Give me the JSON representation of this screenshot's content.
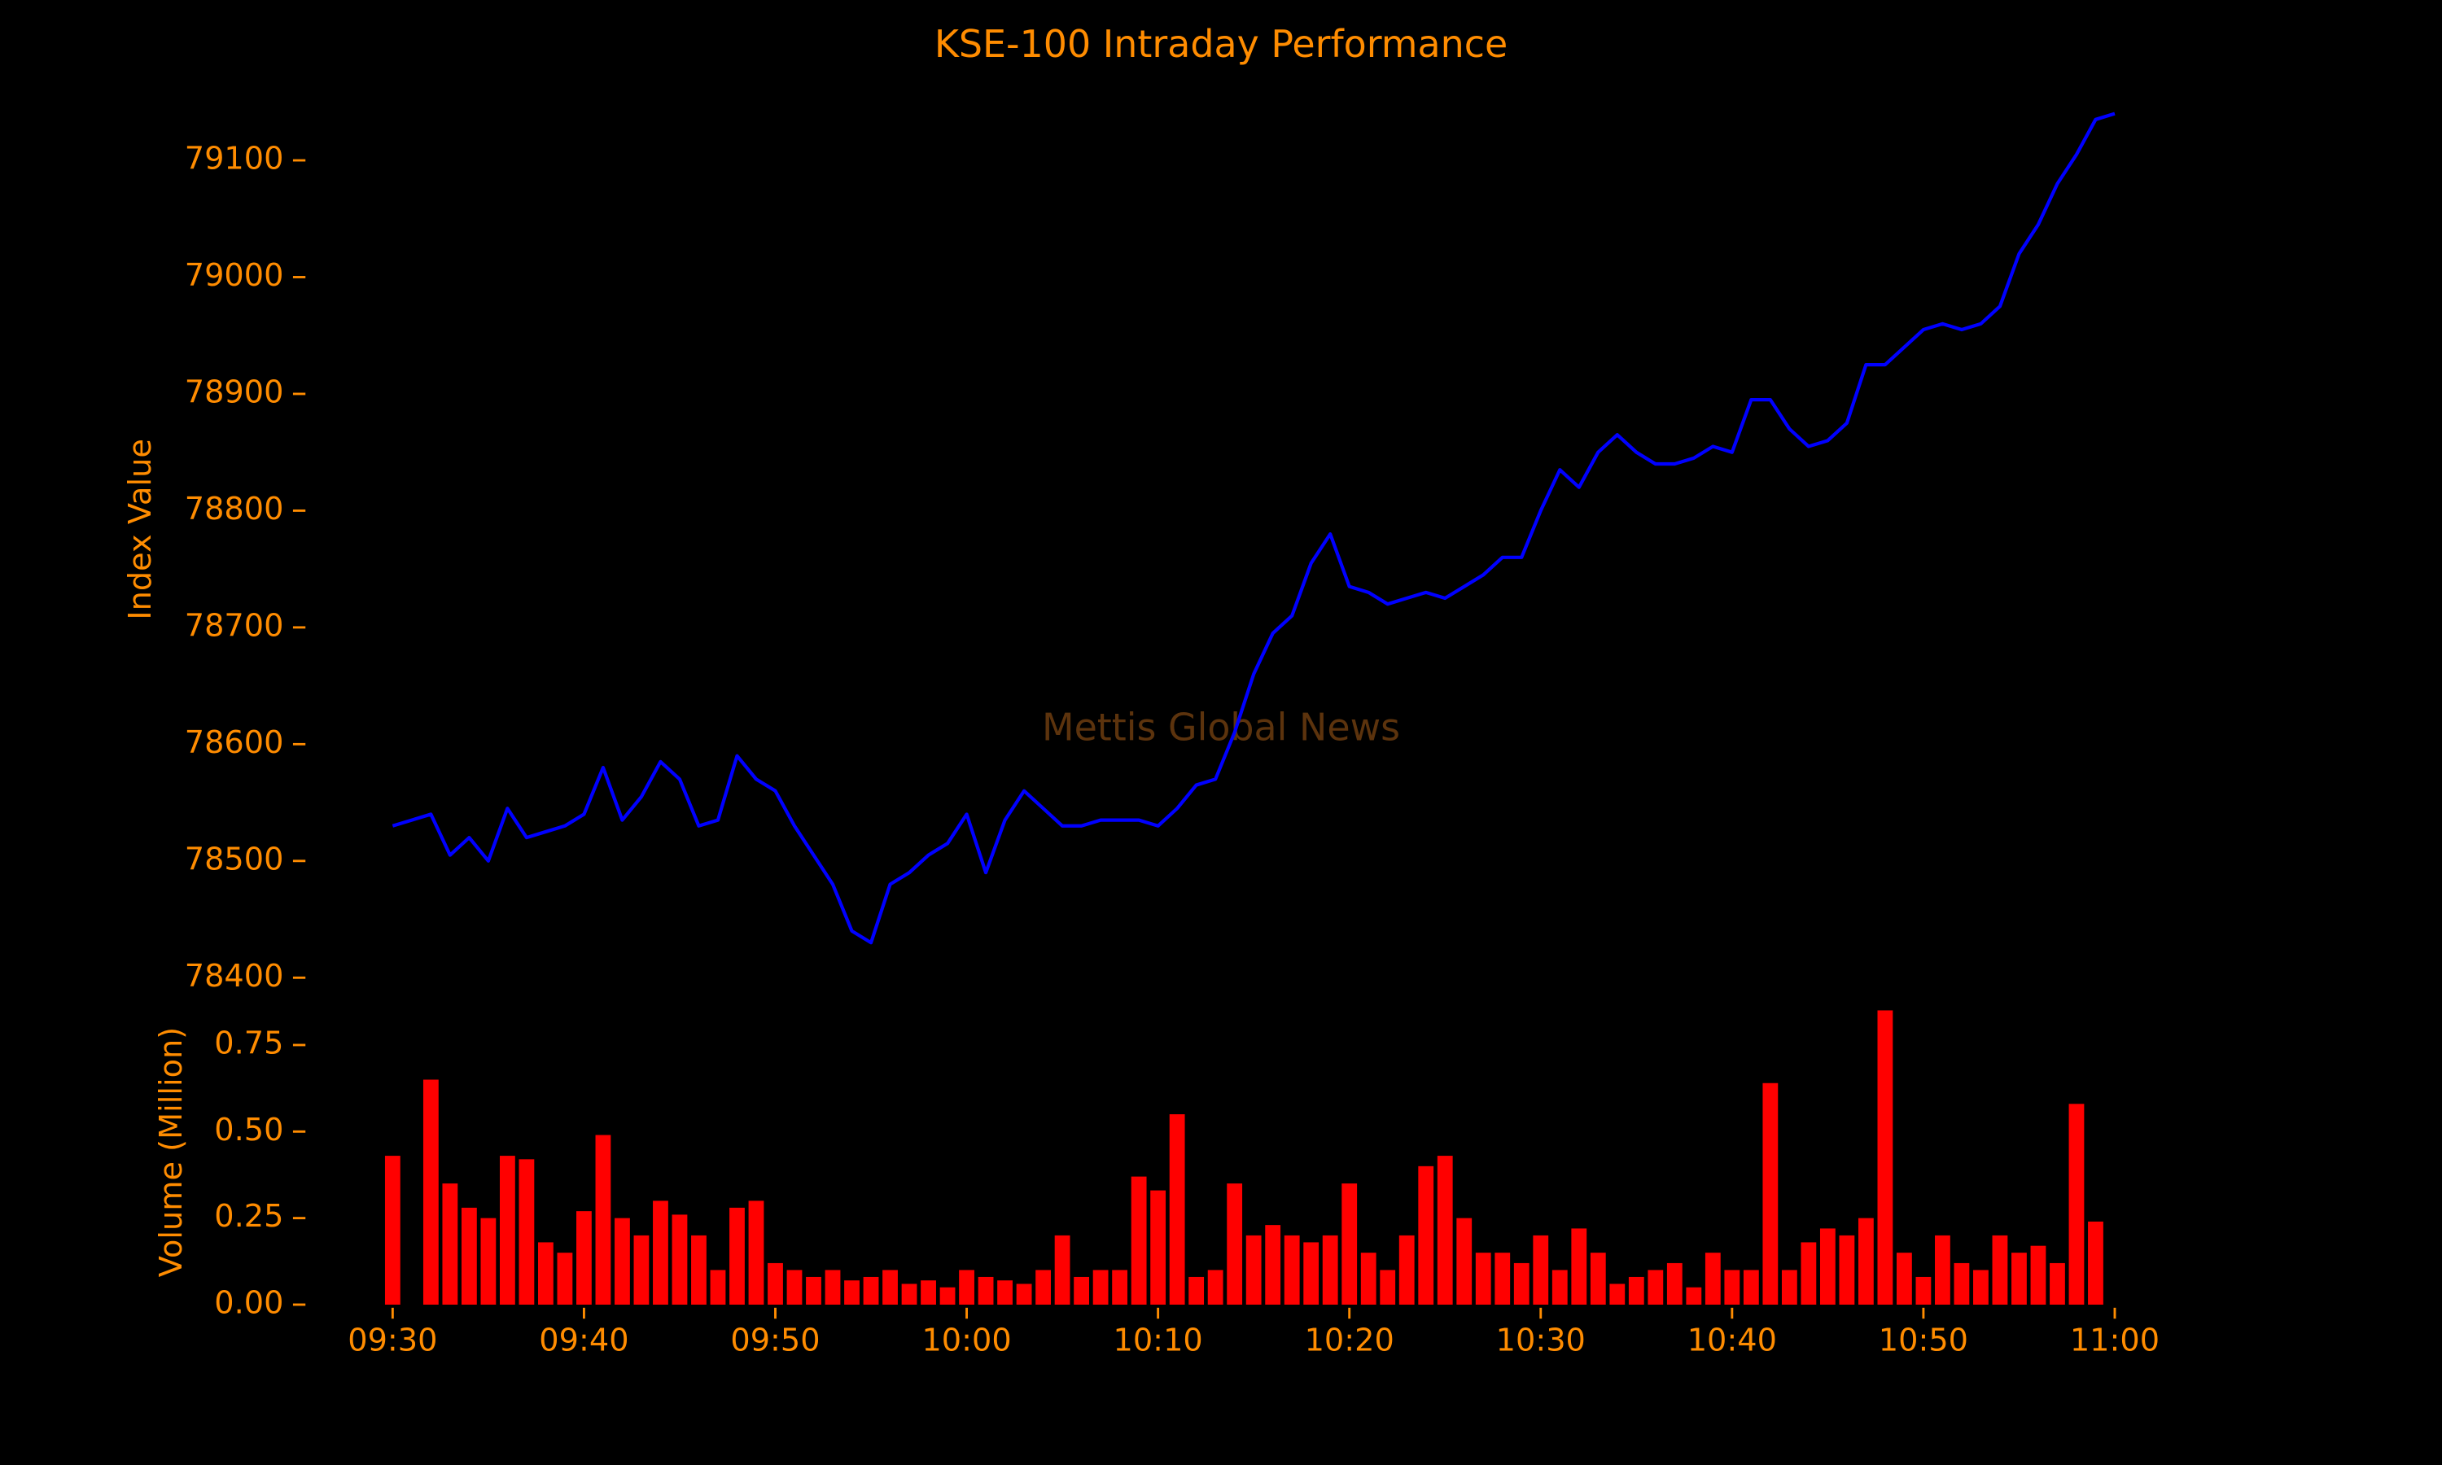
{
  "chart_data": [
    {
      "type": "line",
      "title": "KSE-100 Intraday Performance",
      "ylabel": "Index Value",
      "annotation": "Mettis Global News",
      "color": "#0000ff",
      "x": [
        "09:30",
        "09:31",
        "09:32",
        "09:33",
        "09:34",
        "09:35",
        "09:36",
        "09:37",
        "09:38",
        "09:39",
        "09:40",
        "09:41",
        "09:42",
        "09:43",
        "09:44",
        "09:45",
        "09:46",
        "09:47",
        "09:48",
        "09:49",
        "09:50",
        "09:51",
        "09:52",
        "09:53",
        "09:54",
        "09:55",
        "09:56",
        "09:57",
        "09:58",
        "09:59",
        "10:00",
        "10:01",
        "10:02",
        "10:03",
        "10:04",
        "10:05",
        "10:06",
        "10:07",
        "10:08",
        "10:09",
        "10:10",
        "10:11",
        "10:12",
        "10:13",
        "10:14",
        "10:15",
        "10:16",
        "10:17",
        "10:18",
        "10:19",
        "10:20",
        "10:21",
        "10:22",
        "10:23",
        "10:24",
        "10:25",
        "10:26",
        "10:27",
        "10:28",
        "10:29",
        "10:30",
        "10:31",
        "10:32",
        "10:33",
        "10:34",
        "10:35",
        "10:36",
        "10:37",
        "10:38",
        "10:39",
        "10:40",
        "10:41",
        "10:42",
        "10:43",
        "10:44",
        "10:45",
        "10:46",
        "10:47",
        "10:48",
        "10:49",
        "10:50",
        "10:51",
        "10:52",
        "10:53",
        "10:54",
        "10:55",
        "10:56",
        "10:57",
        "10:58",
        "10:59",
        "11:00"
      ],
      "values": [
        78530,
        78535,
        78540,
        78505,
        78520,
        78500,
        78545,
        78520,
        78525,
        78530,
        78540,
        78580,
        78535,
        78555,
        78585,
        78570,
        78530,
        78535,
        78590,
        78570,
        78560,
        78530,
        78505,
        78480,
        78440,
        78430,
        78480,
        78490,
        78505,
        78515,
        78540,
        78490,
        78535,
        78560,
        78545,
        78530,
        78530,
        78535,
        78535,
        78535,
        78530,
        78545,
        78565,
        78570,
        78610,
        78660,
        78695,
        78710,
        78755,
        78780,
        78735,
        78730,
        78720,
        78725,
        78730,
        78725,
        78735,
        78745,
        78760,
        78760,
        78800,
        78835,
        78820,
        78850,
        78865,
        78850,
        78840,
        78840,
        78845,
        78855,
        78850,
        78895,
        78895,
        78870,
        78855,
        78860,
        78875,
        78925,
        78925,
        78940,
        78955,
        78960,
        78955,
        78960,
        78975,
        79020,
        79045,
        79080,
        79105,
        79135,
        79140
      ],
      "xlim": [
        "09:30",
        "11:00"
      ],
      "ylim": [
        78380,
        79180
      ],
      "yticks": [
        78400,
        78500,
        78600,
        78700,
        78800,
        78900,
        79000,
        79100
      ]
    },
    {
      "type": "bar",
      "ylabel": "Volume (Million)",
      "color": "#ff0000",
      "x": [
        "09:30",
        "09:31",
        "09:32",
        "09:33",
        "09:34",
        "09:35",
        "09:36",
        "09:37",
        "09:38",
        "09:39",
        "09:40",
        "09:41",
        "09:42",
        "09:43",
        "09:44",
        "09:45",
        "09:46",
        "09:47",
        "09:48",
        "09:49",
        "09:50",
        "09:51",
        "09:52",
        "09:53",
        "09:54",
        "09:55",
        "09:56",
        "09:57",
        "09:58",
        "09:59",
        "10:00",
        "10:01",
        "10:02",
        "10:03",
        "10:04",
        "10:05",
        "10:06",
        "10:07",
        "10:08",
        "10:09",
        "10:10",
        "10:11",
        "10:12",
        "10:13",
        "10:14",
        "10:15",
        "10:16",
        "10:17",
        "10:18",
        "10:19",
        "10:20",
        "10:21",
        "10:22",
        "10:23",
        "10:24",
        "10:25",
        "10:26",
        "10:27",
        "10:28",
        "10:29",
        "10:30",
        "10:31",
        "10:32",
        "10:33",
        "10:34",
        "10:35",
        "10:36",
        "10:37",
        "10:38",
        "10:39",
        "10:40",
        "10:41",
        "10:42",
        "10:43",
        "10:44",
        "10:45",
        "10:46",
        "10:47",
        "10:48",
        "10:49",
        "10:50",
        "10:51",
        "10:52",
        "10:53",
        "10:54",
        "10:55",
        "10:56",
        "10:57",
        "10:58",
        "10:59",
        "11:00"
      ],
      "values": [
        0.43,
        0.0,
        0.65,
        0.35,
        0.28,
        0.25,
        0.43,
        0.42,
        0.18,
        0.15,
        0.27,
        0.49,
        0.25,
        0.2,
        0.3,
        0.26,
        0.2,
        0.1,
        0.28,
        0.3,
        0.12,
        0.1,
        0.08,
        0.1,
        0.07,
        0.08,
        0.1,
        0.06,
        0.07,
        0.05,
        0.1,
        0.08,
        0.07,
        0.06,
        0.1,
        0.2,
        0.08,
        0.1,
        0.1,
        0.37,
        0.33,
        0.55,
        0.08,
        0.1,
        0.35,
        0.2,
        0.23,
        0.2,
        0.18,
        0.2,
        0.35,
        0.15,
        0.1,
        0.2,
        0.4,
        0.43,
        0.25,
        0.15,
        0.15,
        0.12,
        0.2,
        0.1,
        0.22,
        0.15,
        0.06,
        0.08,
        0.1,
        0.12,
        0.05,
        0.15,
        0.1,
        0.1,
        0.64,
        0.1,
        0.18,
        0.22,
        0.2,
        0.25,
        0.85,
        0.15,
        0.08,
        0.2,
        0.12,
        0.1,
        0.2,
        0.15,
        0.17,
        0.12,
        0.58,
        0.24,
        0
      ],
      "xlim": [
        "09:30",
        "11:00"
      ],
      "ylim": [
        0,
        0.85
      ],
      "yticks": [
        {
          "value": 0,
          "label": "0.00"
        },
        {
          "value": 0.25,
          "label": "0.25"
        },
        {
          "value": 0.5,
          "label": "0.50"
        },
        {
          "value": 0.75,
          "label": "0.75"
        }
      ],
      "xticks": [
        "09:30",
        "09:40",
        "09:50",
        "10:00",
        "10:10",
        "10:20",
        "10:30",
        "10:40",
        "10:50",
        "11:00"
      ]
    }
  ]
}
